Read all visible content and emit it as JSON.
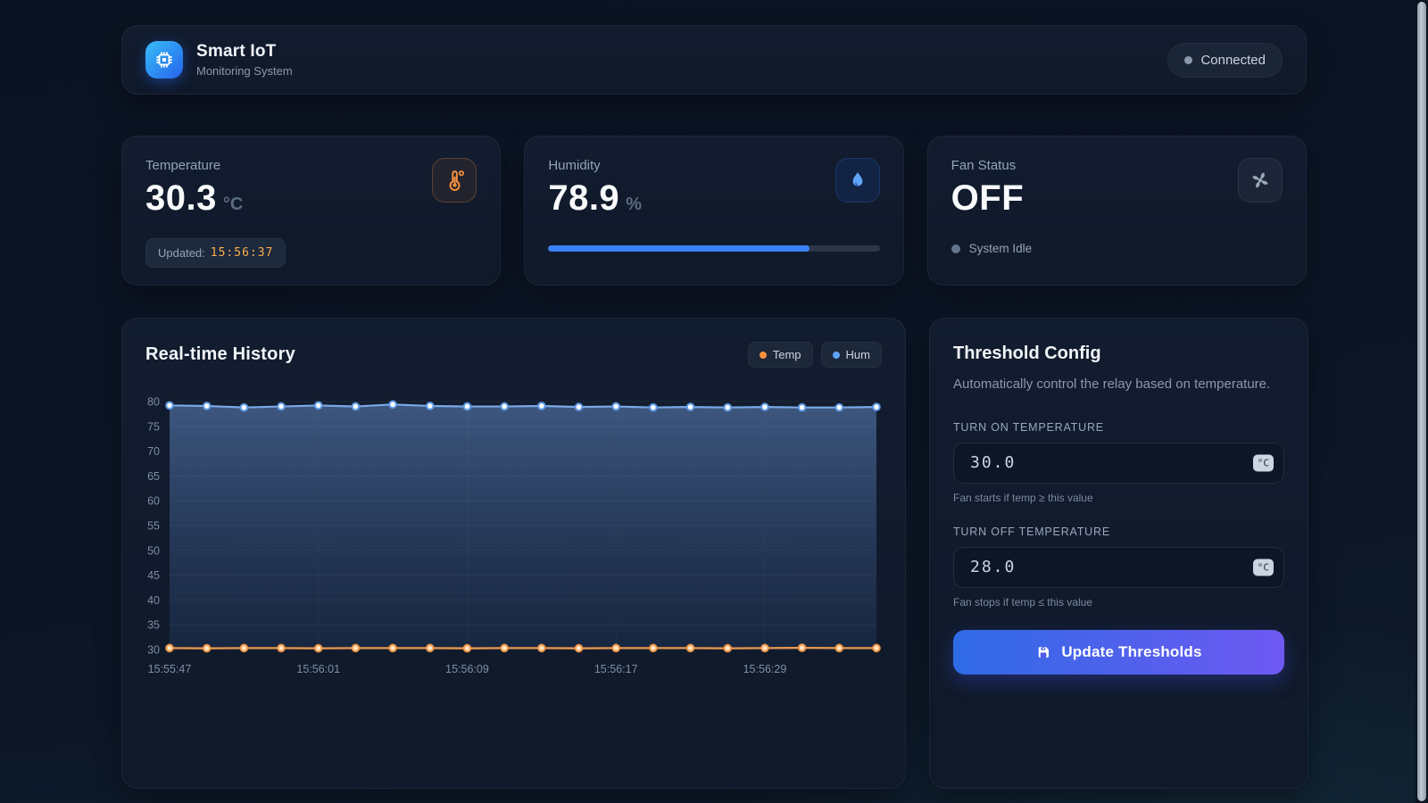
{
  "header": {
    "title": "Smart IoT",
    "subtitle": "Monitoring System",
    "status": "Connected"
  },
  "cards": {
    "temperature": {
      "label": "Temperature",
      "value": "30.3",
      "unit": "°C",
      "updated_label": "Updated:",
      "updated_time": "15:56:37"
    },
    "humidity": {
      "label": "Humidity",
      "value": "78.9",
      "unit": "%",
      "progress_pct": 78.9
    },
    "fan": {
      "label": "Fan Status",
      "value": "OFF",
      "status_text": "System Idle"
    }
  },
  "history": {
    "title": "Real-time History",
    "legend": [
      {
        "label": "Temp",
        "color": "#fb923c"
      },
      {
        "label": "Hum",
        "color": "#60a5fa"
      }
    ]
  },
  "chart_data": {
    "type": "line",
    "title": "Real-time History",
    "ylim": [
      30,
      80
    ],
    "y_ticks": [
      30,
      35,
      40,
      45,
      50,
      55,
      60,
      65,
      70,
      75,
      80
    ],
    "x_tick_labels": [
      "15:55:47",
      "15:56:01",
      "15:56:09",
      "15:56:17",
      "15:56:29"
    ],
    "x_tick_indices": [
      0,
      4,
      8,
      12,
      16
    ],
    "grid": true,
    "legend_position": "top-right",
    "series": [
      {
        "name": "Hum",
        "color": "#7aa9e8",
        "dot_fill": "#ffffff",
        "dot_stroke": "#5e9ae6",
        "area": true,
        "values": [
          79.2,
          79.1,
          78.8,
          79.0,
          79.2,
          79.0,
          79.4,
          79.1,
          79.0,
          79.0,
          79.1,
          78.9,
          79.0,
          78.8,
          78.9,
          78.8,
          78.9,
          78.8,
          78.8,
          78.9
        ]
      },
      {
        "name": "Temp",
        "color": "#f09a4a",
        "dot_fill": "#ffe3c2",
        "dot_stroke": "#ef9544",
        "area": false,
        "values": [
          30.3,
          30.25,
          30.3,
          30.3,
          30.25,
          30.3,
          30.3,
          30.3,
          30.25,
          30.3,
          30.3,
          30.25,
          30.3,
          30.3,
          30.3,
          30.25,
          30.3,
          30.35,
          30.3,
          30.3
        ]
      }
    ]
  },
  "threshold": {
    "title": "Threshold Config",
    "subtitle": "Automatically control the relay based on temperature.",
    "on_label": "TURN ON TEMPERATURE",
    "on_value": "30.0",
    "on_unit": "°C",
    "on_help": "Fan starts if temp ≥ this value",
    "off_label": "TURN OFF TEMPERATURE",
    "off_value": "28.0",
    "off_unit": "°C",
    "off_help": "Fan stops if temp ≤ this value",
    "button_label": "Update Thresholds"
  },
  "colors": {
    "accent_blue": "#3b82f6",
    "accent_light_blue": "#60a5fa",
    "accent_orange": "#fb923c",
    "button_gradient_start": "#2e6ae5",
    "button_gradient_end": "#6e59f2",
    "card_bg": "#111b2d",
    "page_bg": "#0c1424"
  }
}
